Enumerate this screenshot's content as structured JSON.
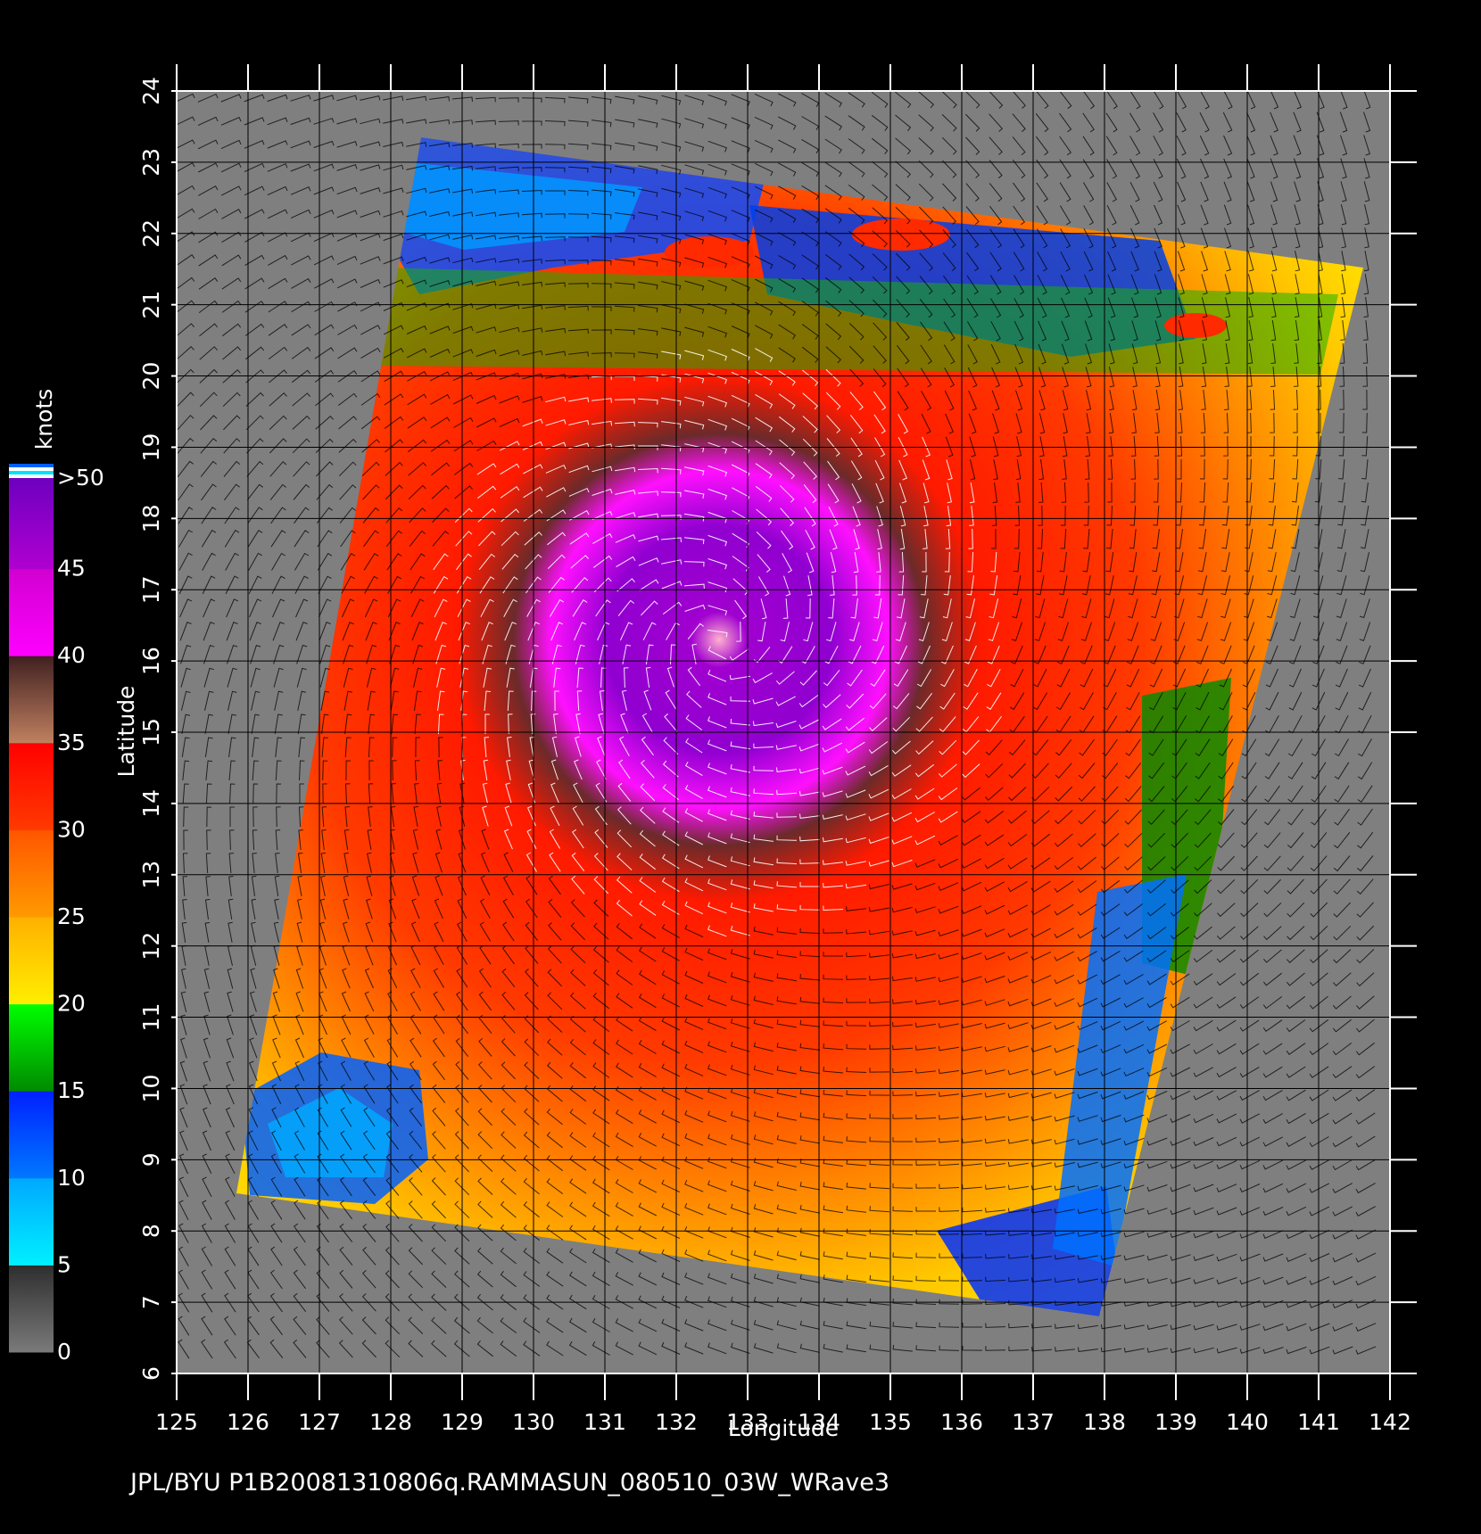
{
  "footer": "JPL/BYU  P1B20081310806q.RAMMASUN_080510_03W_WRave3",
  "colors": {
    "background": "#000000",
    "land_or_nodata": "#7f7f7f",
    "grid": "#000000"
  },
  "chart_data": {
    "type": "heatmap",
    "subject": "scatterometer ocean surface wind speed with wind barbs",
    "xlabel": "Longitude",
    "ylabel": "Latitude",
    "xlim": [
      125,
      142
    ],
    "ylim": [
      6,
      24
    ],
    "x_ticks": [
      "125",
      "126",
      "127",
      "128",
      "129",
      "130",
      "131",
      "132",
      "133",
      "134",
      "135",
      "136",
      "137",
      "138",
      "139",
      "140",
      "141",
      "142"
    ],
    "y_ticks": [
      "6",
      "7",
      "8",
      "9",
      "10",
      "11",
      "12",
      "13",
      "14",
      "15",
      "16",
      "17",
      "18",
      "19",
      "20",
      "21",
      "22",
      "23",
      "24"
    ],
    "grid": true,
    "storm_center": {
      "lon": 132.6,
      "lat": 16.3,
      "max_wind_knots": ">50"
    },
    "colorbar": {
      "unit": "knots",
      "labels": [
        "0",
        "5",
        "10",
        "15",
        "20",
        "25",
        "30",
        "35",
        "40",
        "45",
        ">50"
      ],
      "bands": [
        {
          "from": 0,
          "to": 5,
          "color_low": "#7a7a7a",
          "color_high": "#2e2e2e"
        },
        {
          "from": 5,
          "to": 10,
          "color_low": "#00f0ff",
          "color_high": "#00a8ff"
        },
        {
          "from": 10,
          "to": 15,
          "color_low": "#0078ff",
          "color_high": "#0020ff"
        },
        {
          "from": 15,
          "to": 20,
          "color_low": "#008a00",
          "color_high": "#00ff00"
        },
        {
          "from": 20,
          "to": 25,
          "color_low": "#ffee00",
          "color_high": "#ffb000"
        },
        {
          "from": 25,
          "to": 30,
          "color_low": "#ff9a00",
          "color_high": "#ff5500"
        },
        {
          "from": 30,
          "to": 35,
          "color_low": "#ff3a00",
          "color_high": "#ff0000"
        },
        {
          "from": 35,
          "to": 40,
          "color_low": "#c08060",
          "color_high": "#402020"
        },
        {
          "from": 40,
          "to": 45,
          "color_low": "#ff00ff",
          "color_high": "#d000d0"
        },
        {
          "from": 45,
          "to": 50,
          "color_low": "#b000d0",
          "color_high": "#7000c0"
        }
      ],
      "overflow_colors": [
        "#7000c0",
        "#ffffff",
        "#00e0ff",
        "#ffffff",
        "#0060ff"
      ]
    }
  }
}
